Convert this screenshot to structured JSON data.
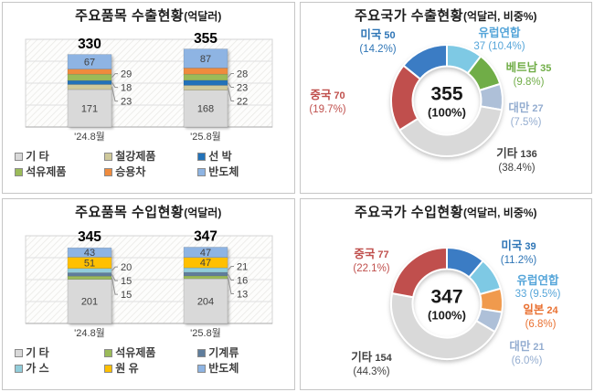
{
  "chart_data": [
    {
      "id": "export-items",
      "type": "stacked-bar",
      "title": "주요품목 수출현황",
      "title_suffix": "(억달러)",
      "categories": [
        "'24.8월",
        "'25.8월"
      ],
      "totals": [
        330,
        355
      ],
      "ylim": [
        0,
        400
      ],
      "grid_step": 100,
      "grid": true,
      "series": [
        {
          "name": "기 타",
          "color": "#d9d9d9",
          "values": [
            171,
            168
          ],
          "label_pos": "inside"
        },
        {
          "name": "철강제품",
          "color": "#cfc99b",
          "values": [
            23,
            22
          ],
          "label_pos": "side"
        },
        {
          "name": "선 박",
          "color": "#2272b9",
          "values": [
            18,
            23
          ],
          "label_pos": "side"
        },
        {
          "name": "석유제품",
          "color": "#9bbb59",
          "values": [
            29,
            28
          ],
          "label_pos": "side"
        },
        {
          "name": "승용차",
          "color": "#ef8b3e",
          "values": [
            23,
            28
          ],
          "label_pos": "inside"
        },
        {
          "name": "반도체",
          "color": "#8eb4e3",
          "values": [
            67,
            87
          ],
          "label_pos": "inside"
        }
      ]
    },
    {
      "id": "export-countries",
      "type": "donut",
      "title": "주요국가 수출현황",
      "title_suffix": "(억달러, 비중%)",
      "center": {
        "value": "355",
        "pct": "(100%)"
      },
      "cy": 81,
      "slices": [
        {
          "name": "유럽연합",
          "value": 37,
          "pct": 10.4,
          "color": "#7ec9e4"
        },
        {
          "name": "베트남",
          "value": 35,
          "pct": 9.8,
          "color": "#70ad47"
        },
        {
          "name": "대만",
          "value": 27,
          "pct": 7.5,
          "color": "#aec0d8"
        },
        {
          "name": "기타",
          "value": 136,
          "pct": 38.4,
          "color": "#d9d9d9"
        },
        {
          "name": "중국",
          "value": 70,
          "pct": 19.7,
          "color": "#c0504d"
        },
        {
          "name": "미국",
          "value": 50,
          "pct": 14.2,
          "color": "#3a7cc4"
        }
      ],
      "labels": [
        {
          "name": "미국",
          "value": "50",
          "pct": "(14.2%)",
          "color": "#2e75b6",
          "value_on_line2": false,
          "pos": [
            45,
            2
          ]
        },
        {
          "name": "유럽연합",
          "value": "37",
          "pct": "(10.4%)",
          "color": "#55a5d9",
          "value_on_line2": true,
          "pos": [
            178,
            0
          ]
        },
        {
          "name": "베트남",
          "value": "35",
          "pct": "(9.8%)",
          "color": "#70ad47",
          "value_on_line2": false,
          "pos": [
            210,
            38
          ]
        },
        {
          "name": "대만",
          "value": "27",
          "pct": "(7.5%)",
          "color": "#94add0",
          "value_on_line2": false,
          "pos": [
            207,
            82
          ]
        },
        {
          "name": "중국",
          "value": "70",
          "pct": "(19.7%)",
          "color": "#c0504d",
          "value_on_line2": false,
          "pos": [
            -10,
            68
          ]
        },
        {
          "name": "기타",
          "value": "136",
          "pct": "(38.4%)",
          "color": "#404040",
          "value_on_line2": false,
          "pos": [
            197,
            132
          ]
        }
      ]
    },
    {
      "id": "import-items",
      "type": "stacked-bar",
      "title": "주요품목 수입현황",
      "title_suffix": "(억달러)",
      "categories": [
        "'24.8월",
        "'25.8월"
      ],
      "totals": [
        345,
        347
      ],
      "ylim": [
        0,
        400
      ],
      "grid_step": 100,
      "grid": true,
      "series": [
        {
          "name": "기 타",
          "color": "#d9d9d9",
          "values": [
            201,
            204
          ],
          "label_pos": "inside"
        },
        {
          "name": "석유제품",
          "color": "#9bbb59",
          "values": [
            15,
            13
          ],
          "label_pos": "side"
        },
        {
          "name": "기계류",
          "color": "#5f7d9c",
          "values": [
            15,
            16
          ],
          "label_pos": "side"
        },
        {
          "name": "가 스",
          "color": "#92cdda",
          "values": [
            20,
            21
          ],
          "label_pos": "side"
        },
        {
          "name": "원 유",
          "color": "#ffc000",
          "values": [
            51,
            47
          ],
          "label_pos": "inside"
        },
        {
          "name": "반도체",
          "color": "#8eb4e3",
          "values": [
            43,
            47
          ],
          "label_pos": "inside"
        }
      ]
    },
    {
      "id": "import-countries",
      "type": "donut",
      "title": "주요국가 수입현황",
      "title_suffix": "(억달러, 비중%)",
      "center": {
        "value": "347",
        "pct": "(100%)"
      },
      "cy": 88,
      "slices": [
        {
          "name": "미국",
          "value": 39,
          "pct": 11.2,
          "color": "#3a7cc4"
        },
        {
          "name": "유럽연합",
          "value": 33,
          "pct": 9.5,
          "color": "#7ec9e4"
        },
        {
          "name": "일본",
          "value": 24,
          "pct": 6.8,
          "color": "#f09a4d"
        },
        {
          "name": "대만",
          "value": 21,
          "pct": 6.0,
          "color": "#aec0d8"
        },
        {
          "name": "기타",
          "value": 154,
          "pct": 44.3,
          "color": "#d9d9d9"
        },
        {
          "name": "중국",
          "value": 77,
          "pct": 22.1,
          "color": "#c0504d"
        }
      ],
      "labels": [
        {
          "name": "중국",
          "value": "77",
          "pct": "(22.1%)",
          "color": "#c0504d",
          "value_on_line2": false,
          "pos": [
            38,
            27
          ]
        },
        {
          "name": "미국",
          "value": "39",
          "pct": "(11.2%)",
          "color": "#2e75b6",
          "value_on_line2": false,
          "pos": [
            199,
            18
          ]
        },
        {
          "name": "유럽연합",
          "value": "33",
          "pct": "(9.5%)",
          "color": "#55a5d9",
          "value_on_line2": true,
          "pos": [
            220,
            56
          ]
        },
        {
          "name": "일본",
          "value": "24",
          "pct": "(6.8%)",
          "color": "#e97132",
          "value_on_line2": false,
          "pos": [
            223,
            88
          ]
        },
        {
          "name": "대만",
          "value": "21",
          "pct": "(6.0%)",
          "color": "#94add0",
          "value_on_line2": false,
          "pos": [
            208,
            128
          ]
        },
        {
          "name": "기타",
          "value": "154",
          "pct": "(44.3%)",
          "color": "#404040",
          "value_on_line2": false,
          "pos": [
            38,
            140
          ]
        }
      ]
    }
  ]
}
